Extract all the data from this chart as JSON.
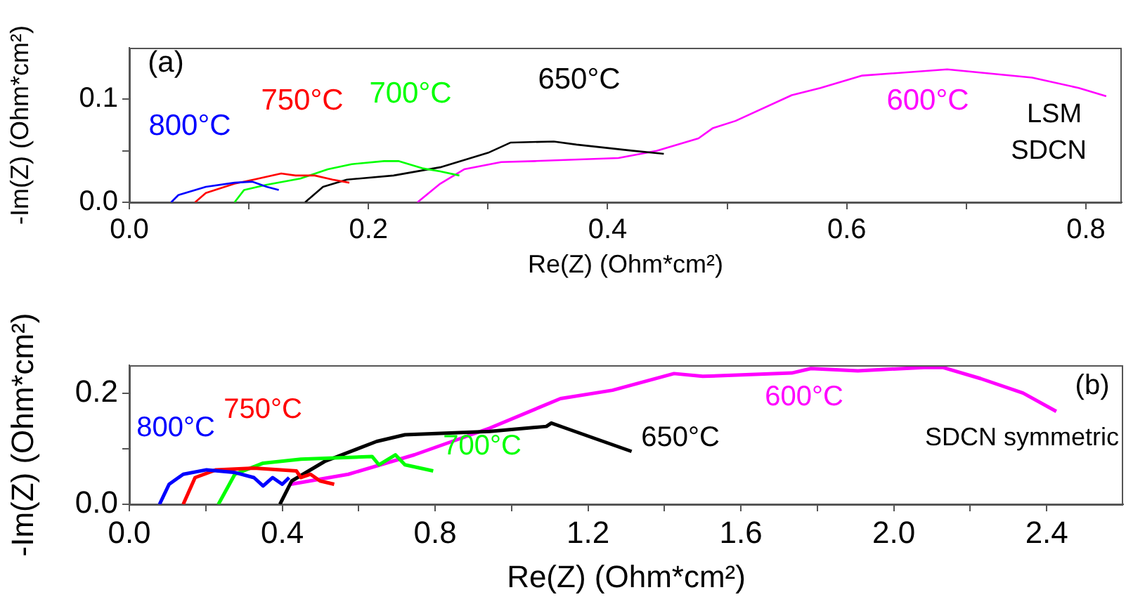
{
  "chart_data": [
    {
      "type": "line",
      "xlabel": "Re(Z) (Ohm*cm²)",
      "ylabel": "-Im(Z) (Ohm*cm²)",
      "annotations": [
        "(a)",
        "LSM",
        "SDCN"
      ],
      "xlim": [
        0,
        0.83
      ],
      "ylim": [
        0,
        0.15
      ],
      "xticks": [
        {
          "value": 0,
          "label": "0.0"
        },
        {
          "value": 0.1,
          "label": null
        },
        0.2,
        {
          "value": 0.3,
          "label": null
        },
        0.4,
        {
          "value": 0.5,
          "label": null
        },
        0.6,
        {
          "value": 0.7,
          "label": null
        },
        0.8
      ],
      "yticks": [
        {
          "value": 0,
          "label": "0.0"
        },
        {
          "value": 0.05,
          "label": null
        },
        0.1
      ],
      "grid": false,
      "legend": false,
      "marker": "none",
      "series": [
        {
          "name": "800°C",
          "color": "#0000ff",
          "x": [
            0.035,
            0.041,
            0.064,
            0.088,
            0.103,
            0.115,
            0.125
          ],
          "values": [
            0,
            0.007,
            0.015,
            0.019,
            0.02,
            0.015,
            0.012
          ]
        },
        {
          "name": "750°C",
          "color": "#ff0000",
          "x": [
            0.055,
            0.064,
            0.088,
            0.104,
            0.127,
            0.139,
            0.155,
            0.17,
            0.184
          ],
          "values": [
            0,
            0.009,
            0.018,
            0.022,
            0.028,
            0.026,
            0.026,
            0.022,
            0.019
          ]
        },
        {
          "name": "700°C",
          "color": "#00ff00",
          "x": [
            0.088,
            0.096,
            0.115,
            0.143,
            0.166,
            0.186,
            0.213,
            0.225,
            0.245,
            0.26,
            0.276
          ],
          "values": [
            0,
            0.012,
            0.017,
            0.023,
            0.032,
            0.037,
            0.04,
            0.04,
            0.033,
            0.03,
            0.026
          ]
        },
        {
          "name": "650°C",
          "color": "#000000",
          "x": [
            0.147,
            0.162,
            0.182,
            0.221,
            0.26,
            0.3,
            0.319,
            0.355,
            0.374,
            0.421,
            0.447
          ],
          "values": [
            0,
            0.015,
            0.022,
            0.026,
            0.034,
            0.048,
            0.058,
            0.059,
            0.056,
            0.05,
            0.047
          ]
        },
        {
          "name": "600°C",
          "color": "#ff00ff",
          "x": [
            0.241,
            0.26,
            0.28,
            0.311,
            0.339,
            0.409,
            0.441,
            0.476,
            0.488,
            0.507,
            0.554,
            0.578,
            0.613,
            0.684,
            0.755,
            0.794,
            0.817
          ],
          "values": [
            0,
            0.018,
            0.032,
            0.039,
            0.04,
            0.043,
            0.05,
            0.062,
            0.072,
            0.079,
            0.104,
            0.111,
            0.123,
            0.129,
            0.121,
            0.111,
            0.103
          ]
        }
      ]
    },
    {
      "type": "line",
      "xlabel": "Re(Z) (Ohm*cm²)",
      "ylabel": "-Im(Z) (Ohm*cm²)",
      "annotations": [
        "(b)",
        "SDCN symmetric"
      ],
      "xlim": [
        0,
        2.6
      ],
      "ylim": [
        0,
        0.25
      ],
      "xticks": [
        {
          "value": 0,
          "label": "0.0"
        },
        {
          "value": 0.2,
          "label": null
        },
        0.4,
        {
          "value": 0.6,
          "label": null
        },
        0.8,
        {
          "value": 1.0,
          "label": null
        },
        1.2,
        {
          "value": 1.4,
          "label": null
        },
        1.6,
        {
          "value": 1.8,
          "label": null
        },
        {
          "value": 2.0,
          "label": "2.0"
        },
        {
          "value": 2.2,
          "label": null
        },
        2.4
      ],
      "yticks": [
        {
          "value": 0,
          "label": "0.0"
        },
        {
          "value": 0.1,
          "label": null
        },
        0.2
      ],
      "grid": false,
      "legend": false,
      "marker": "none",
      "series": [
        {
          "name": "800°C",
          "color": "#0000ff",
          "x": [
            0.079,
            0.104,
            0.141,
            0.202,
            0.277,
            0.326,
            0.35,
            0.375,
            0.4,
            0.418
          ],
          "values": [
            0,
            0.036,
            0.054,
            0.062,
            0.057,
            0.048,
            0.033,
            0.048,
            0.036,
            0.048
          ]
        },
        {
          "name": "750°C",
          "color": "#ff0000",
          "x": [
            0.141,
            0.172,
            0.227,
            0.326,
            0.437,
            0.449,
            0.474,
            0.499,
            0.536
          ],
          "values": [
            0,
            0.048,
            0.062,
            0.065,
            0.06,
            0.048,
            0.054,
            0.042,
            0.036
          ]
        },
        {
          "name": "700°C",
          "color": "#00ff00",
          "x": [
            0.233,
            0.276,
            0.35,
            0.449,
            0.635,
            0.653,
            0.696,
            0.721,
            0.795
          ],
          "values": [
            0,
            0.054,
            0.074,
            0.081,
            0.086,
            0.071,
            0.089,
            0.071,
            0.06
          ]
        },
        {
          "name": "650°C",
          "color": "#000000",
          "x": [
            0.394,
            0.425,
            0.511,
            0.647,
            0.721,
            0.943,
            1.091,
            1.104,
            1.141,
            1.215,
            1.314
          ],
          "values": [
            0,
            0.042,
            0.077,
            0.113,
            0.125,
            0.131,
            0.14,
            0.146,
            0.137,
            0.119,
            0.095
          ]
        },
        {
          "name": "600°C",
          "color": "#ff00ff",
          "x": [
            0.422,
            0.573,
            0.746,
            0.943,
            1.128,
            1.264,
            1.425,
            1.5,
            1.733,
            1.783,
            1.906,
            2.079,
            2.128,
            2.227,
            2.338,
            2.425
          ],
          "values": [
            0.036,
            0.054,
            0.089,
            0.137,
            0.19,
            0.205,
            0.235,
            0.23,
            0.236,
            0.244,
            0.24,
            0.246,
            0.246,
            0.226,
            0.2,
            0.167
          ]
        }
      ]
    }
  ]
}
